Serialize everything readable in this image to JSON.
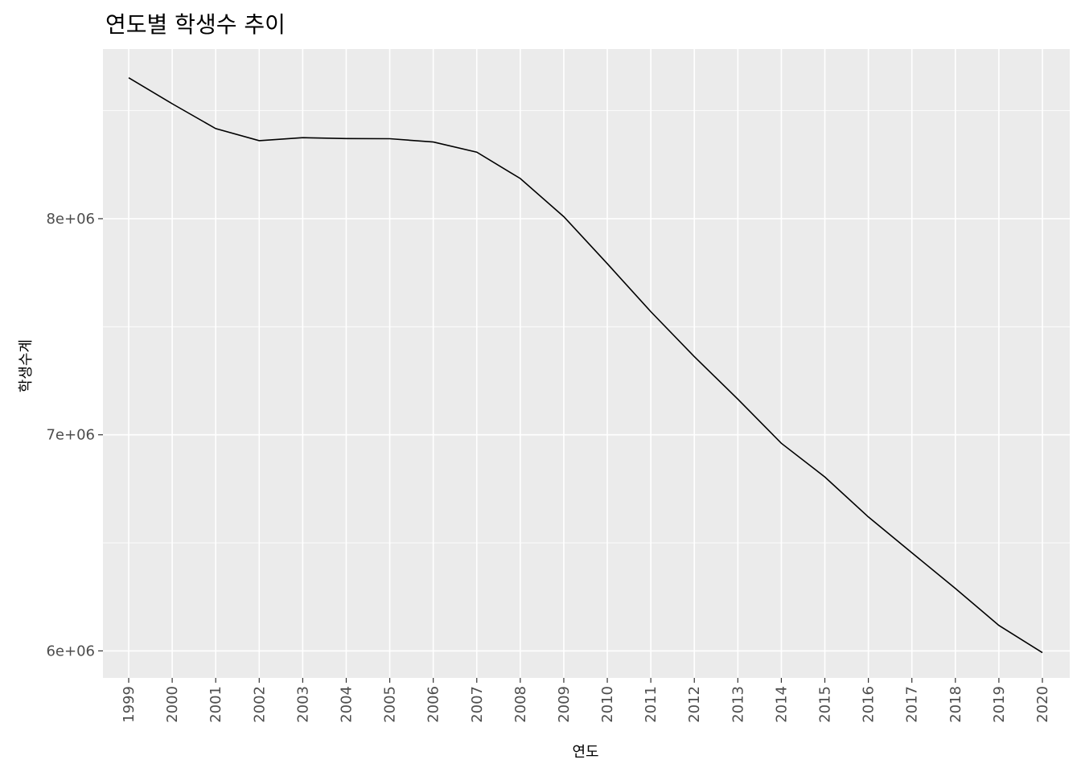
{
  "chart_data": {
    "type": "line",
    "title": "연도별 학생수 추이",
    "xlabel": "연도",
    "ylabel": "학생수계",
    "x": [
      "1999",
      "2000",
      "2001",
      "2002",
      "2003",
      "2004",
      "2005",
      "2006",
      "2007",
      "2008",
      "2009",
      "2010",
      "2011",
      "2012",
      "2013",
      "2014",
      "2015",
      "2016",
      "2017",
      "2018",
      "2019",
      "2020"
    ],
    "values": [
      8652000,
      8532000,
      8417000,
      8361000,
      8375000,
      8371000,
      8370000,
      8355000,
      8308000,
      8186000,
      8009000,
      7792000,
      7570000,
      7362000,
      7165000,
      6961000,
      6805000,
      6620000,
      6454000,
      6289000,
      6118000,
      5992000
    ],
    "y_ticks": [
      {
        "value": 6000000,
        "label": "6e+06"
      },
      {
        "value": 7000000,
        "label": "7e+06"
      },
      {
        "value": 8000000,
        "label": "8e+06"
      }
    ],
    "ylim": [
      5875000,
      8785000
    ],
    "grid": true,
    "line_color": "#000000",
    "panel_color": "#EBEBEB",
    "grid_color": "#FFFFFF"
  }
}
